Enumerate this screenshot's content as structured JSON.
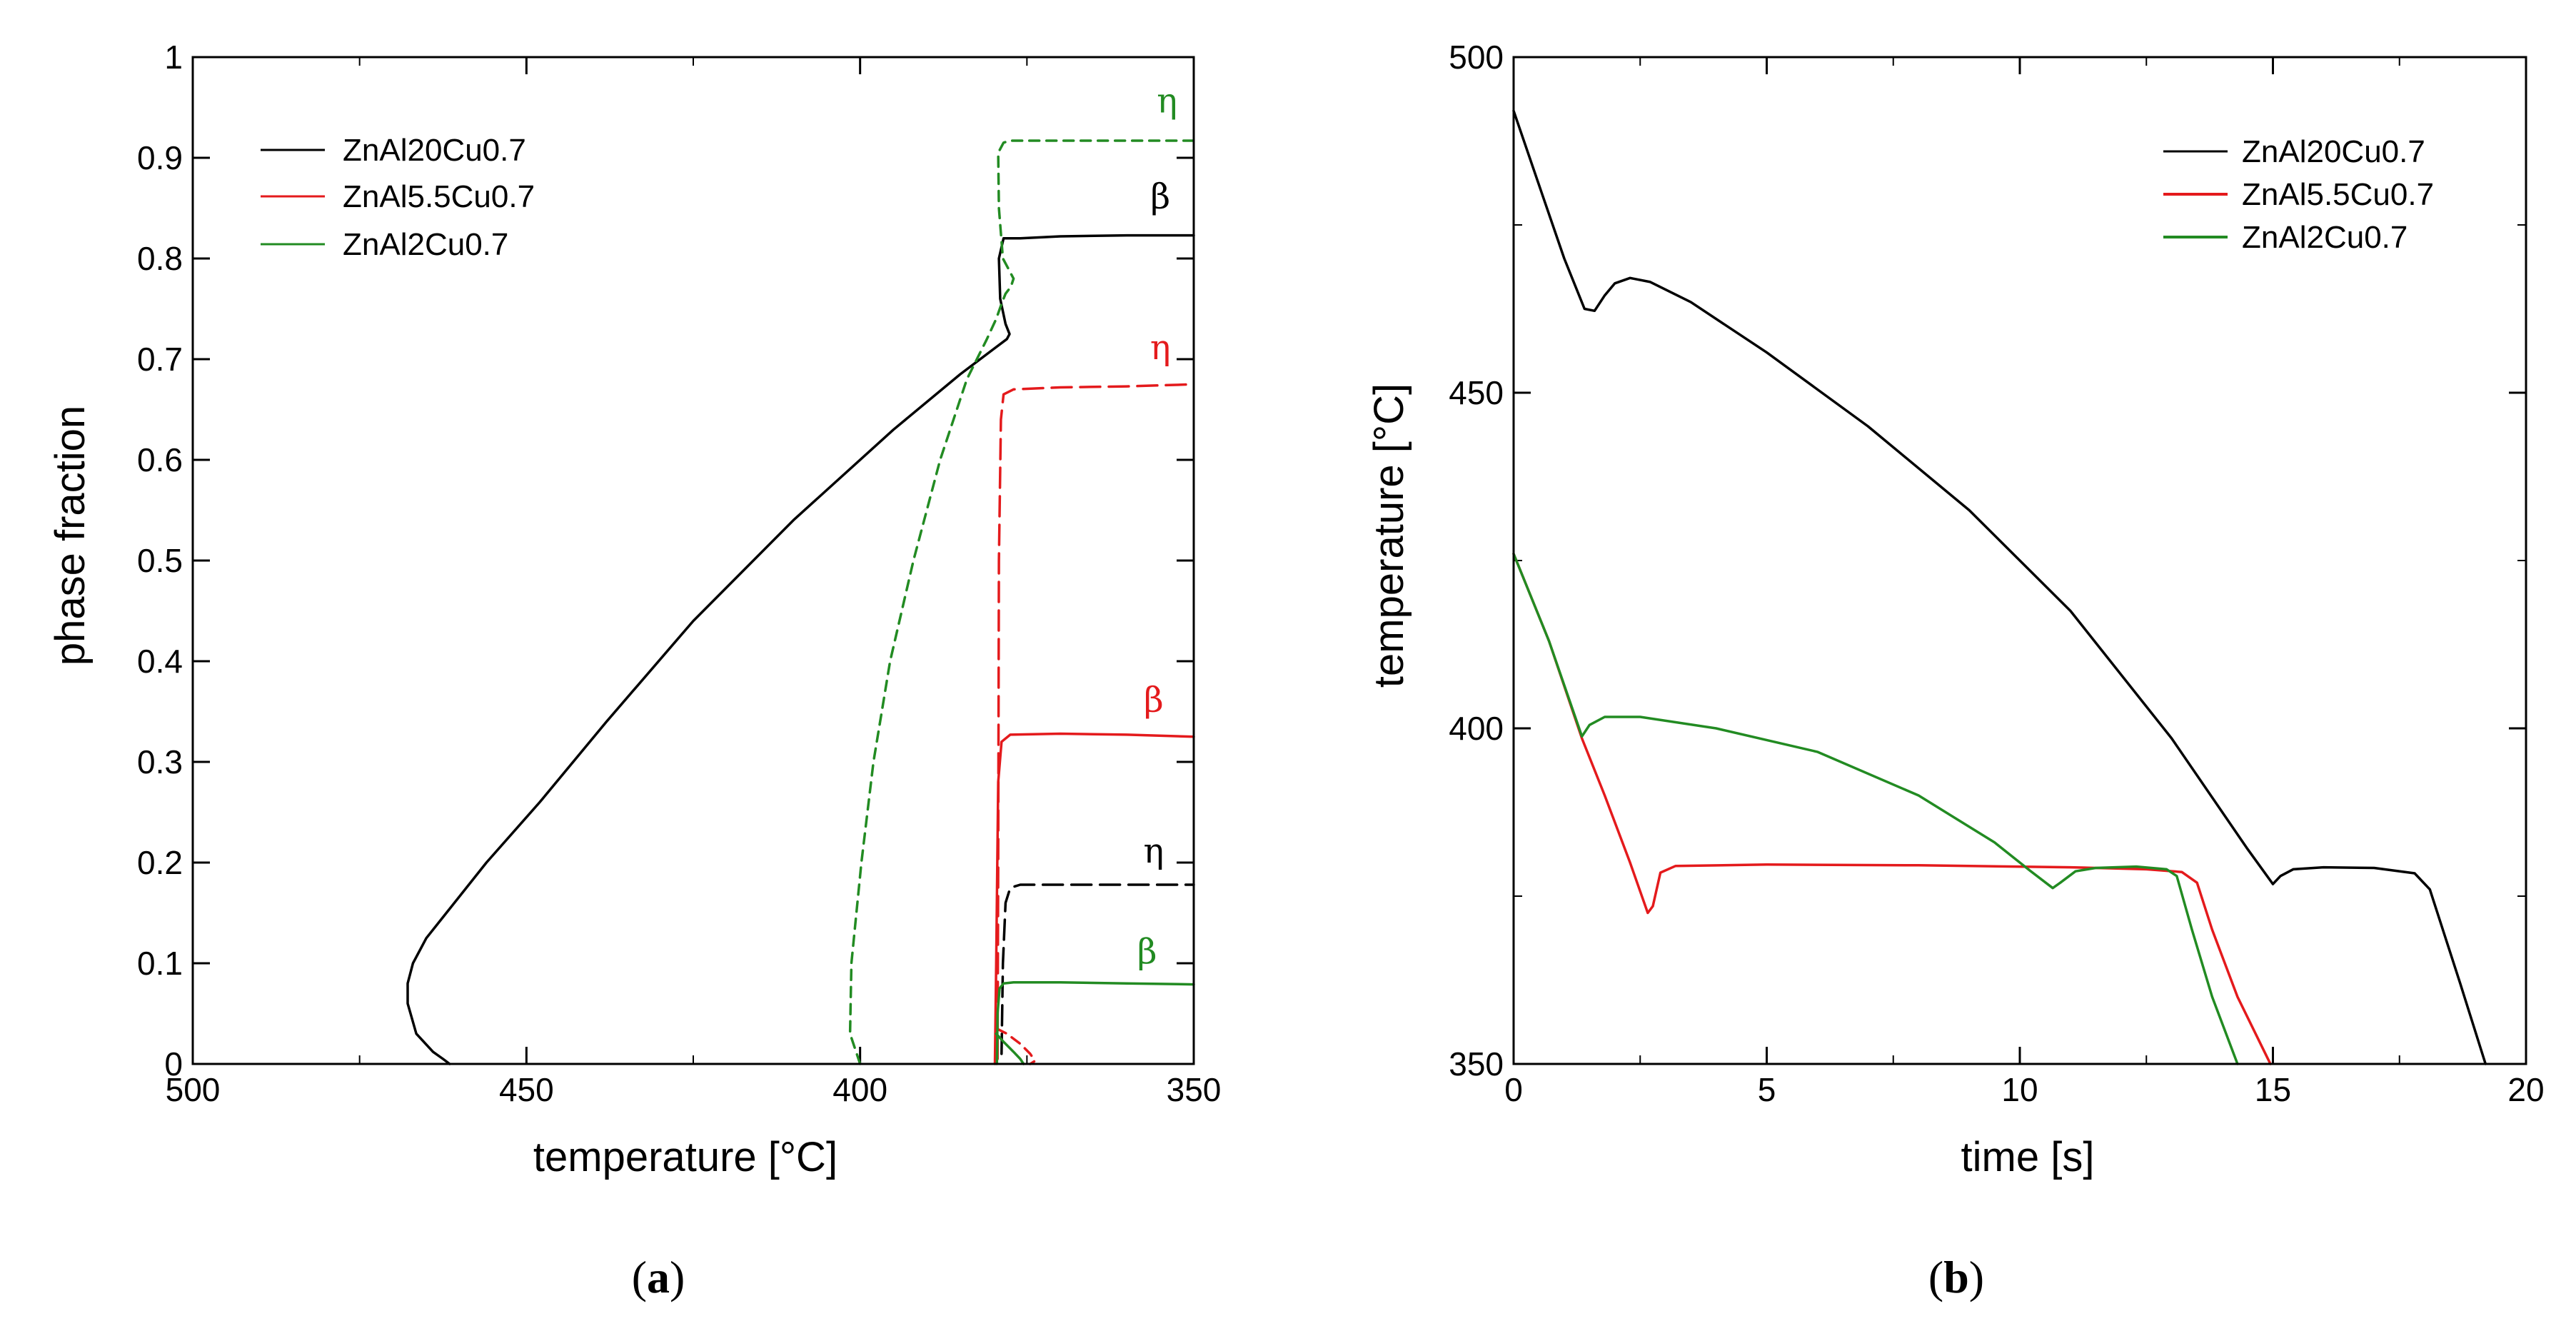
{
  "colors": {
    "black": "#000000",
    "red": "#e41a1c",
    "green": "#228b22",
    "background": "#ffffff"
  },
  "chart_data": [
    {
      "type": "line",
      "panel_label": "a",
      "xlabel": "temperature [°C]",
      "ylabel": "phase fraction",
      "xlim": [
        500,
        350
      ],
      "ylim": [
        0,
        1
      ],
      "x_ticks": [
        500,
        450,
        400,
        350
      ],
      "y_ticks": [
        0,
        0.1,
        0.2,
        0.3,
        0.4,
        0.5,
        0.6,
        0.7,
        0.8,
        0.9,
        1
      ],
      "legend": {
        "placement": "top-left",
        "entries": [
          {
            "label": "ZnAl20Cu0.7",
            "color": "#000000"
          },
          {
            "label": "ZnAl5.5Cu0.7",
            "color": "#e41a1c"
          },
          {
            "label": "ZnAl2Cu0.7",
            "color": "#228b22"
          }
        ]
      },
      "series": [
        {
          "name": "ZnAl20Cu0.7 β",
          "color": "#000000",
          "dash": "solid",
          "x": [
            461.5,
            462.5,
            464,
            466.5,
            467.8,
            467.8,
            467,
            465,
            462,
            456,
            448,
            438,
            425,
            410,
            395,
            385,
            380,
            378,
            377.6,
            378.2,
            379,
            379.2,
            378.5,
            376,
            370,
            360,
            350
          ],
          "y": [
            0,
            0.005,
            0.012,
            0.03,
            0.06,
            0.08,
            0.1,
            0.125,
            0.15,
            0.2,
            0.26,
            0.34,
            0.44,
            0.54,
            0.63,
            0.685,
            0.71,
            0.72,
            0.725,
            0.735,
            0.76,
            0.8,
            0.82,
            0.82,
            0.822,
            0.823,
            0.823
          ]
        },
        {
          "name": "ZnAl20Cu0.7 η",
          "color": "#000000",
          "dash": "long",
          "x": [
            378.8,
            378.6,
            378.2,
            377.5,
            376,
            370,
            360,
            350
          ],
          "y": [
            0.01,
            0.1,
            0.16,
            0.175,
            0.178,
            0.178,
            0.178,
            0.178
          ]
        },
        {
          "name": "ZnAl5.5Cu0.7 β",
          "color": "#e41a1c",
          "dash": "solid",
          "x": [
            379.8,
            379.6,
            379.3,
            378.8,
            377.5,
            370,
            360,
            350
          ],
          "y": [
            0,
            0.1,
            0.28,
            0.32,
            0.327,
            0.328,
            0.327,
            0.325
          ]
        },
        {
          "name": "ZnAl5.5Cu0.7 η",
          "color": "#e41a1c",
          "dash": "long",
          "x": [
            379.4,
            379.3,
            379.2,
            378.9,
            378.5,
            377,
            370,
            360,
            350
          ],
          "y": [
            0.005,
            0.2,
            0.5,
            0.64,
            0.665,
            0.67,
            0.672,
            0.673,
            0.675
          ]
        },
        {
          "name": "ZnAl5.5Cu0.7 minor",
          "color": "#e41a1c",
          "dash": "short",
          "x": [
            379.5,
            378,
            376,
            374.5,
            373.8,
            374.5
          ],
          "y": [
            0.035,
            0.03,
            0.02,
            0.01,
            0.003,
            0
          ]
        },
        {
          "name": "ZnAl2Cu0.7 η",
          "color": "#228b22",
          "dash": "short",
          "x": [
            400,
            401.5,
            401.3,
            399.8,
            398,
            395.5,
            392,
            388,
            384,
            381,
            379.6,
            378.8,
            378.2,
            377.4,
            377,
            377.8,
            378.6,
            379.2,
            379.3,
            378.5,
            377.5,
            370,
            360,
            350
          ],
          "y": [
            0,
            0.03,
            0.1,
            0.2,
            0.3,
            0.4,
            0.5,
            0.6,
            0.68,
            0.72,
            0.74,
            0.755,
            0.765,
            0.772,
            0.78,
            0.79,
            0.8,
            0.85,
            0.905,
            0.915,
            0.917,
            0.917,
            0.917,
            0.917
          ]
        },
        {
          "name": "ZnAl2Cu0.7 β",
          "color": "#228b22",
          "dash": "solid",
          "x": [
            379.5,
            379.4,
            379.1,
            378.5,
            377,
            370,
            360,
            350
          ],
          "y": [
            0,
            0.05,
            0.075,
            0.08,
            0.081,
            0.081,
            0.08,
            0.079
          ]
        },
        {
          "name": "ZnAl2Cu0.7 minor",
          "color": "#228b22",
          "dash": "solid",
          "x": [
            379.6,
            378.5,
            377,
            376,
            375.5
          ],
          "y": [
            0.03,
            0.022,
            0.012,
            0.005,
            0
          ]
        }
      ],
      "annotations": [
        {
          "text": "η",
          "color": "#228b22",
          "x": 354,
          "y": 0.945
        },
        {
          "text": "β",
          "color": "#000000",
          "x": 355,
          "y": 0.85
        },
        {
          "text": "η",
          "color": "#e41a1c",
          "x": 355,
          "y": 0.7
        },
        {
          "text": "β",
          "color": "#e41a1c",
          "x": 356,
          "y": 0.35
        },
        {
          "text": "η",
          "color": "#000000",
          "x": 356,
          "y": 0.2
        },
        {
          "text": "β",
          "color": "#228b22",
          "x": 357,
          "y": 0.1
        }
      ]
    },
    {
      "type": "line",
      "panel_label": "b",
      "xlabel": "time [s]",
      "ylabel": "temperature [°C]",
      "xlim": [
        0,
        20
      ],
      "ylim": [
        350,
        500
      ],
      "x_ticks": [
        0,
        5,
        10,
        15,
        20
      ],
      "y_ticks": [
        350,
        400,
        450,
        500
      ],
      "legend": {
        "placement": "top-right",
        "entries": [
          {
            "label": "ZnAl20Cu0.7",
            "color": "#000000"
          },
          {
            "label": "ZnAl5.5Cu0.7",
            "color": "#e41a1c"
          },
          {
            "label": "ZnAl2Cu0.7",
            "color": "#228b22"
          }
        ]
      },
      "series": [
        {
          "name": "ZnAl20Cu0.7",
          "color": "#000000",
          "dash": "solid",
          "x": [
            0,
            0.5,
            1.0,
            1.4,
            1.6,
            1.8,
            2.0,
            2.3,
            2.7,
            3.5,
            5,
            7,
            9,
            11,
            13,
            14.5,
            15.0,
            15.15,
            15.4,
            16,
            17,
            17.8,
            18.1,
            18.7,
            19.2
          ],
          "y": [
            492,
            481,
            470,
            462.5,
            462.2,
            464.5,
            466.3,
            467.1,
            466.5,
            463.5,
            456,
            445,
            432.5,
            417.5,
            398.5,
            382,
            376.8,
            378,
            379,
            379.3,
            379.2,
            378.4,
            376,
            362,
            350
          ]
        },
        {
          "name": "ZnAl5.5Cu0.7",
          "color": "#e41a1c",
          "dash": "solid",
          "x": [
            0,
            0.7,
            1.35,
            1.8,
            2.3,
            2.65,
            2.75,
            2.9,
            3.2,
            5,
            8,
            11,
            12.5,
            13.2,
            13.5,
            13.8,
            14.3,
            14.95
          ],
          "y": [
            426,
            413,
            398.5,
            390,
            380,
            372.5,
            373.5,
            378.5,
            379.5,
            379.7,
            379.6,
            379.3,
            379,
            378.6,
            377,
            370,
            360,
            350
          ]
        },
        {
          "name": "ZnAl2Cu0.7",
          "color": "#228b22",
          "dash": "solid",
          "x": [
            0,
            0.7,
            1.35,
            1.5,
            1.8,
            2.5,
            4,
            6,
            8,
            9.5,
            10.2,
            10.65,
            10.8,
            11.1,
            11.5,
            12.3,
            12.9,
            13.1,
            13.4,
            13.8,
            14.3
          ],
          "y": [
            426,
            413,
            398.8,
            400.5,
            401.7,
            401.7,
            400,
            396.5,
            390,
            383,
            378.8,
            376.2,
            377,
            378.7,
            379.2,
            379.4,
            379,
            378,
            370,
            360,
            350
          ]
        }
      ]
    }
  ],
  "captions": {
    "panel_a": "a",
    "panel_b": "b",
    "open_paren": "(",
    "close_paren": ")"
  }
}
